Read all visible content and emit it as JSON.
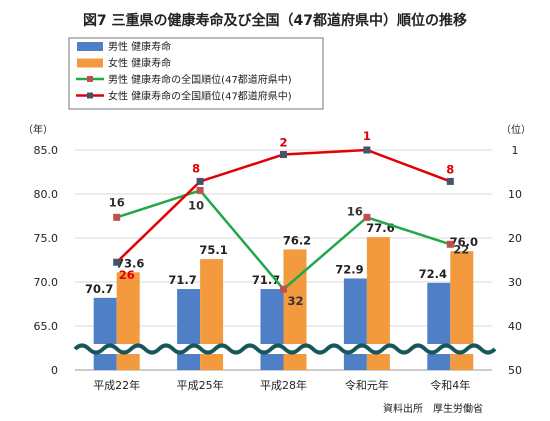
{
  "chart_data": {
    "type": "bar",
    "title": "図7 三重県の健康寿命及び全国（47都道府県中）順位の推移",
    "categories": [
      "平成22年",
      "平成25年",
      "平成28年",
      "令和元年",
      "令和4年"
    ],
    "series": [
      {
        "name": "男性 健康寿命",
        "type": "bar",
        "axis": "left",
        "color": "#4f7fc7",
        "values": [
          70.7,
          71.7,
          71.7,
          72.9,
          72.4
        ]
      },
      {
        "name": "女性 健康寿命",
        "type": "bar",
        "axis": "left",
        "color": "#f39a3f",
        "values": [
          73.6,
          75.1,
          76.2,
          77.6,
          76.0
        ]
      },
      {
        "name": "男性 健康寿命の全国順位(47都道府県中)",
        "type": "line",
        "axis": "right",
        "color": "#1fa84a",
        "values": [
          16,
          10,
          32,
          16,
          22
        ]
      },
      {
        "name": "女性 健康寿命の全国順位(47都道府県中)",
        "type": "line",
        "axis": "right",
        "color": "#e30000",
        "values": [
          26,
          8,
          2,
          1,
          8
        ]
      }
    ],
    "left_axis": {
      "unit": "（年）",
      "ticks": [
        "0",
        "65.0",
        "70.0",
        "75.0",
        "80.0",
        "85.0"
      ]
    },
    "right_axis": {
      "unit": "（位）",
      "ticks": [
        "1",
        "10",
        "20",
        "30",
        "40",
        "50"
      ],
      "inverted": true
    },
    "legend_position": "top-left",
    "axis_break": true,
    "source": "資料出所　厚生労働省"
  }
}
